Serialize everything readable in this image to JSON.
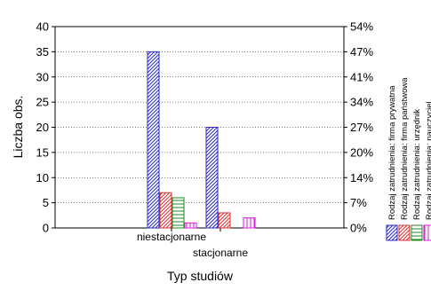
{
  "chart_data": {
    "type": "bar",
    "xlabel": "Typ studiów",
    "ylabel": "Liczba obs.",
    "categories": [
      "niestacjonarne",
      "stacjonarne"
    ],
    "ylim": [
      0,
      40
    ],
    "yticks": [
      "0",
      "5",
      "10",
      "15",
      "20",
      "25",
      "30",
      "35",
      "40"
    ],
    "y2ticks": [
      "0%",
      "7%",
      "14%",
      "20%",
      "27%",
      "34%",
      "41%",
      "47%",
      "54%"
    ],
    "grid": true,
    "legend_position": "right",
    "series": [
      {
        "name": "Rodzaj zatrudnienia: firma prywatna",
        "values": [
          35,
          20
        ],
        "color": "#2a2ac8",
        "hatch": "diagonal"
      },
      {
        "name": "Rodzaj zatrudnienia: firma państwowa",
        "values": [
          7,
          3
        ],
        "color": "#d83030",
        "hatch": "diagonal"
      },
      {
        "name": "Rodzaj zatrudnienia: urzędnik",
        "values": [
          6,
          0
        ],
        "color": "#1d8a1d",
        "hatch": "horizontal"
      },
      {
        "name": "Rodzaj zatrudnienia: nauczyciel",
        "values": [
          1,
          2
        ],
        "color": "#d81ad8",
        "hatch": "vertical"
      }
    ]
  }
}
